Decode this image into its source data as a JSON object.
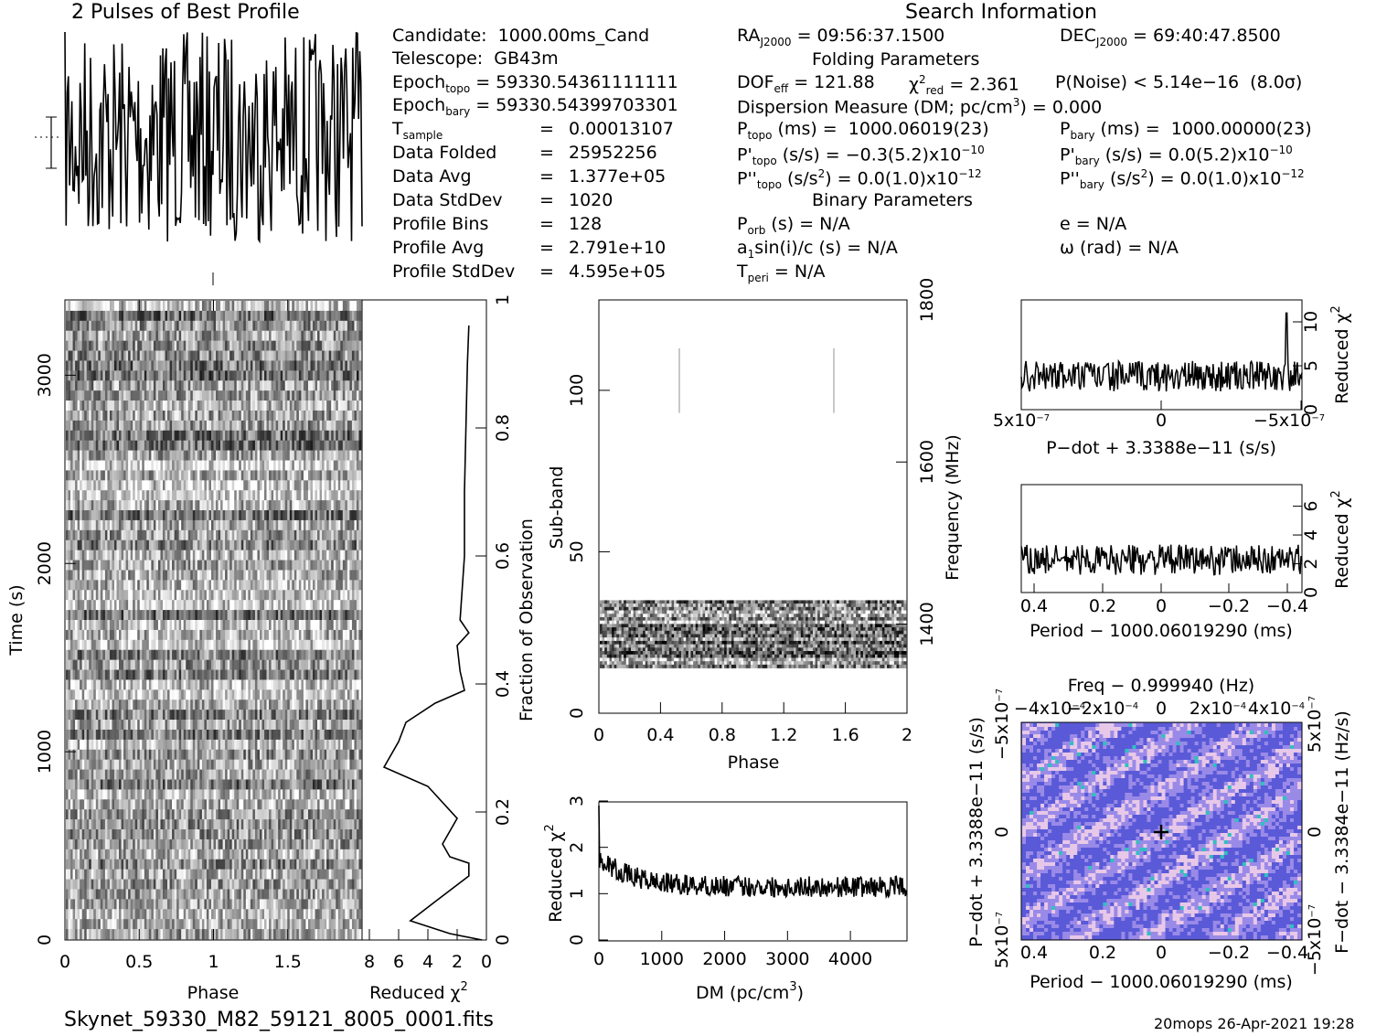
{
  "header": {
    "profile_title": "2 Pulses of Best Profile",
    "search_title": "Search Information",
    "folding_title": "Folding Parameters",
    "binary_title": "Binary Parameters",
    "filename": "Skynet_59330_M82_59121_8005_0001.fits",
    "footer": "20mops 26-Apr-2021 19:28"
  },
  "info": {
    "candidate": {
      "label": "Candidate:",
      "value": "1000.00ms_Cand"
    },
    "telescope": {
      "label": "Telescope:",
      "value": "GB43m"
    },
    "epoch_topo": {
      "label": "Epoch",
      "sub": "topo",
      "value": "= 59330.54361111111"
    },
    "epoch_bary": {
      "label": "Epoch",
      "sub": "bary",
      "value": "= 59330.54399703301"
    },
    "t_sample": {
      "label": "T",
      "sub": "sample",
      "eq": "=",
      "value": "0.00013107"
    },
    "data_folded": {
      "label": "Data Folded",
      "eq": "=",
      "value": "25952256"
    },
    "data_avg": {
      "label": "Data Avg",
      "eq": "=",
      "value": "1.377e+05"
    },
    "data_stddev": {
      "label": "Data StdDev",
      "eq": "=",
      "value": "1020"
    },
    "profile_bins": {
      "label": "Profile Bins",
      "eq": "=",
      "value": "128"
    },
    "profile_avg": {
      "label": "Profile Avg",
      "eq": "=",
      "value": "2.791e+10"
    },
    "profile_stddev": {
      "label": "Profile StdDev",
      "eq": "=",
      "value": "4.595e+05"
    }
  },
  "search": {
    "ra": {
      "label": "RA",
      "sub": "J2000",
      "value": "= 09:56:37.1500"
    },
    "dec": {
      "label": "DEC",
      "sub": "J2000",
      "value": "= 69:40:47.8500"
    },
    "dof": {
      "label": "DOF",
      "sub": "eff",
      "value": "= 121.88"
    },
    "chi2": {
      "label": "χ",
      "sup": "2",
      "sub": "red",
      "value": "= 2.361"
    },
    "pnoise": {
      "label": "P(Noise) < 5.14e−16  (8.0σ)"
    },
    "dm": {
      "label": "Dispersion Measure (DM; pc/cm",
      "sup": "3",
      "value": ") = 0.000"
    },
    "ptopo": {
      "label": "P",
      "sub": "topo",
      "value": " (ms) =  1000.06019(23)"
    },
    "pbary": {
      "label": "P",
      "sub": "bary",
      "value": " (ms) =  1000.00000(23)"
    },
    "pdtopo": {
      "label": "P'",
      "sub": "topo",
      "value": " (s/s) = −0.3(5.2)x10",
      "sup": "−10"
    },
    "pdbary": {
      "label": "P'",
      "sub": "bary",
      "value": " (s/s) = 0.0(5.2)x10",
      "sup": "−10"
    },
    "pddtopo": {
      "label": "P''",
      "sub": "topo",
      "value": " (s/s",
      "sup": "2",
      "tail": ") = 0.0(1.0)x10",
      "sup2": "−12"
    },
    "pddbary": {
      "label": "P''",
      "sub": "bary",
      "value": " (s/s",
      "sup": "2",
      "tail": ") = 0.0(1.0)x10",
      "sup2": "−12"
    },
    "porb": {
      "label": "P",
      "sub": "orb",
      "value": " (s) = N/A"
    },
    "e": {
      "label": "e = N/A"
    },
    "a1": {
      "label": "a",
      "sub": "1",
      "value": "sin(i)/c (s) = N/A"
    },
    "omega": {
      "label": "ω (rad) = N/A"
    },
    "tperi": {
      "label": "T",
      "sub": "peri",
      "value": " = N/A"
    }
  },
  "colors": {
    "ink": "#000000",
    "heat_lo": "#5a5ad8",
    "heat_hi": "#e8c8e8",
    "heat_mid": "#30c0c0",
    "gray_line": "#c8c8c8"
  },
  "chart_data": [
    {
      "type": "line",
      "title": "2 Pulses of Best Profile",
      "xlabel": "",
      "ylabel": "",
      "x_range": [
        0,
        2
      ],
      "note": "noise-like profile, 256 points"
    },
    {
      "type": "heatmap",
      "xlabel": "Phase",
      "ylabel": "Time (s)",
      "xlim": [
        0,
        2
      ],
      "ylim": [
        0,
        3400
      ],
      "x_ticks": [
        "0",
        "0.5",
        "1",
        "1.5"
      ],
      "y_ticks": [
        "0",
        "1000",
        "2000",
        "3000"
      ]
    },
    {
      "type": "line",
      "xlabel": "Reduced χ",
      "xlabel_sup": "2",
      "ylabel": "Fraction of Observation",
      "x_ticks": [
        "8",
        "6",
        "4",
        "2",
        "0"
      ],
      "y_ticks": [
        "0",
        "0.2",
        "0.4",
        "0.6",
        "0.8",
        "1"
      ],
      "points": [
        [
          0.3,
          0.0
        ],
        [
          2.5,
          0.01
        ],
        [
          5.2,
          0.03
        ],
        [
          3.5,
          0.06
        ],
        [
          1.2,
          0.1
        ],
        [
          1.2,
          0.12
        ],
        [
          2.5,
          0.13
        ],
        [
          3,
          0.15
        ],
        [
          2,
          0.19
        ],
        [
          4,
          0.24
        ],
        [
          7,
          0.27
        ],
        [
          6,
          0.31
        ],
        [
          5.5,
          0.34
        ],
        [
          3.5,
          0.37
        ],
        [
          1.5,
          0.39
        ],
        [
          1.8,
          0.42
        ],
        [
          2,
          0.46
        ],
        [
          1.2,
          0.48
        ],
        [
          1.8,
          0.5
        ],
        [
          1.5,
          0.6
        ],
        [
          1.5,
          0.7
        ],
        [
          1.4,
          0.8
        ],
        [
          1.3,
          0.9
        ],
        [
          1.2,
          0.96
        ]
      ]
    },
    {
      "type": "heatmap",
      "xlabel": "Phase",
      "ylabel": "Sub-band",
      "y2label": "Frequency (MHz)",
      "xlim": [
        0,
        2
      ],
      "ylim": [
        0,
        128
      ],
      "x_ticks": [
        "0",
        "0.4",
        "0.8",
        "1.2",
        "1.6",
        "2"
      ],
      "y_ticks": [
        "0",
        "50",
        "100"
      ],
      "y2_ticks": [
        "1400",
        "1600",
        "1800"
      ]
    },
    {
      "type": "line",
      "xlabel": "DM (pc/cm",
      "xlabel_sup": "3",
      "xlabel_tail": ")",
      "ylabel": "Reduced χ",
      "ylabel_sup": "2",
      "xlim": [
        0,
        4900
      ],
      "ylim": [
        0,
        3
      ],
      "x_ticks": [
        "0",
        "1000",
        "2000",
        "3000",
        "4000"
      ],
      "y_ticks": [
        "0",
        "1",
        "2",
        "3"
      ]
    },
    {
      "type": "line",
      "xlabel": "P−dot + 3.3388e−11 (s/s)",
      "ylabel": "Reduced χ",
      "ylabel_sup": "2",
      "ylim": [
        0,
        12
      ],
      "x_ticks": [
        "5x10",
        "0",
        "−5x10"
      ],
      "x_tick_exp": "−7",
      "y_ticks": [
        "0",
        "5",
        "10"
      ]
    },
    {
      "type": "line",
      "xlabel": "Period − 1000.06019290 (ms)",
      "ylabel": "Reduced χ",
      "ylabel_sup": "2",
      "ylim": [
        0,
        7.5
      ],
      "x_ticks": [
        "0.4",
        "0.2",
        "0",
        "−0.2",
        "−0.4"
      ],
      "y_ticks": [
        "0",
        "2",
        "4",
        "6"
      ]
    },
    {
      "type": "heatmap",
      "title": "Freq − 0.999940 (Hz)",
      "xlabel": "Period − 1000.06019290 (ms)",
      "ylabel": "P−dot + 3.3388e−11 (s/s)",
      "y2label": "F−dot − 3.3384e−11 (Hz/s)",
      "x_ticks": [
        "0.4",
        "0.2",
        "0",
        "−0.2",
        "−0.4"
      ],
      "top_ticks": [
        "−4x10",
        "−2x10",
        "0",
        "2x10",
        "4x10"
      ],
      "top_exp": "−4",
      "y_ticks": [
        "5x10",
        "0",
        "−5x10"
      ],
      "y_exp": "−7",
      "y2_ticks": [
        "−5x10",
        "0",
        "5x10"
      ],
      "y2_exp": "−7"
    }
  ]
}
